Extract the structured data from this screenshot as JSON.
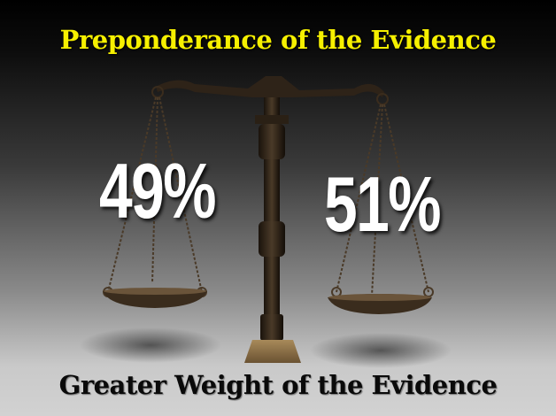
{
  "title": "Preponderance of the Evidence",
  "subtitle": "Greater Weight of the Evidence",
  "scale": {
    "left_percent": "49%",
    "right_percent": "51%"
  },
  "colors": {
    "title": "#f6f000",
    "subtitle": "#0a0a0a",
    "percent": "#ffffff",
    "brass": "#5a4530"
  }
}
